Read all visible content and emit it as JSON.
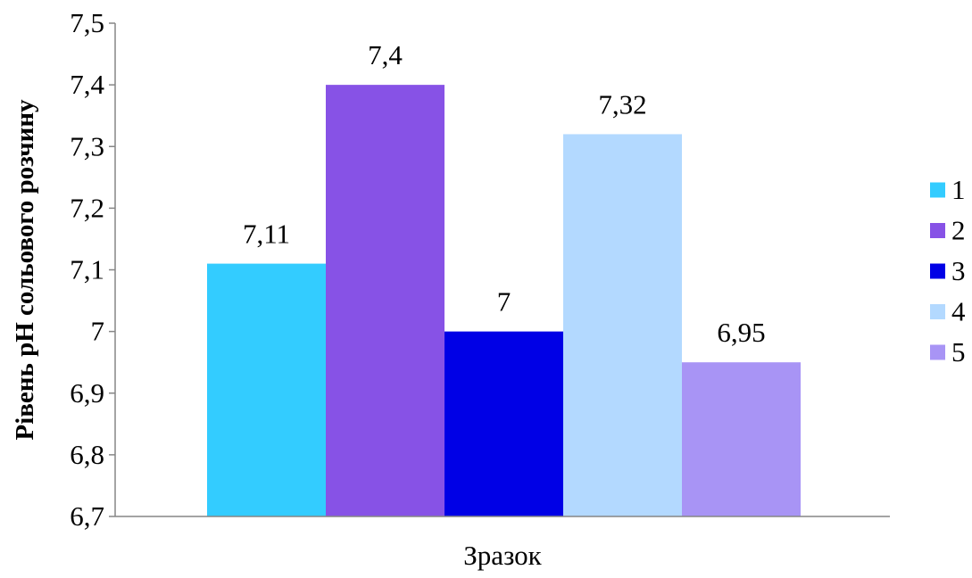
{
  "chart_data": {
    "type": "bar",
    "title": "",
    "xlabel": "Зразок",
    "ylabel": "Рівень pH сольового розчину",
    "ylim": [
      6.7,
      7.5
    ],
    "yticks": [
      "6,7",
      "6,8",
      "6,9",
      "7",
      "7,1",
      "7,2",
      "7,3",
      "7,4",
      "7,5"
    ],
    "grid": false,
    "legend_position": "right",
    "series": [
      {
        "name": "1",
        "value": 7.11,
        "label": "7,11",
        "color": "#33CCFF"
      },
      {
        "name": "2",
        "value": 7.4,
        "label": "7,4",
        "color": "#8752E6"
      },
      {
        "name": "3",
        "value": 7.0,
        "label": "7",
        "color": "#0000E6"
      },
      {
        "name": "4",
        "value": 7.32,
        "label": "7,32",
        "color": "#B3D9FF"
      },
      {
        "name": "5",
        "value": 6.95,
        "label": "6,95",
        "color": "#A894F5"
      }
    ]
  }
}
